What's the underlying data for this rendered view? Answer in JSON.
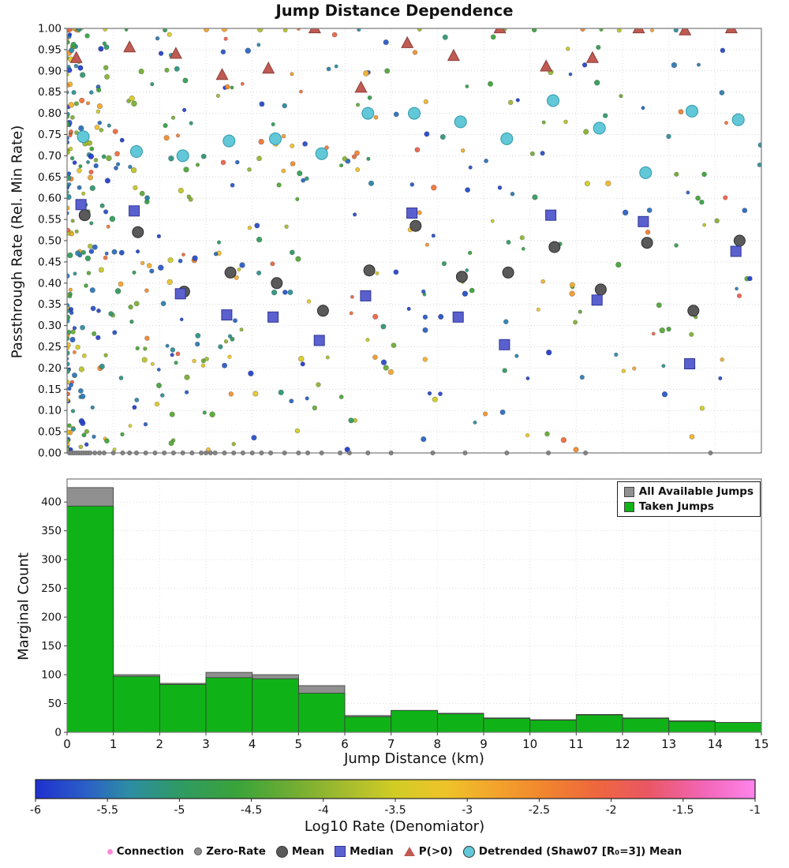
{
  "title": "Jump Distance Dependence",
  "chart_data": [
    {
      "type": "scatter",
      "title": "Jump Distance Dependence",
      "xlabel": "",
      "ylabel": "Passthrough Rate (Rel. Min Rate)",
      "xlim": [
        0,
        15
      ],
      "ylim": [
        0.0,
        1.0
      ],
      "grid": true,
      "yticks": [
        "0.00",
        "0.05",
        "0.10",
        "0.15",
        "0.20",
        "0.25",
        "0.30",
        "0.35",
        "0.40",
        "0.45",
        "0.50",
        "0.55",
        "0.60",
        "0.65",
        "0.70",
        "0.75",
        "0.80",
        "0.85",
        "0.90",
        "0.95",
        "1.00"
      ],
      "bin_centers": [
        0.35,
        1.5,
        2.5,
        3.5,
        4.5,
        5.5,
        6.5,
        7.5,
        8.5,
        9.5,
        10.5,
        11.5,
        12.5,
        13.5,
        14.5
      ],
      "summary_series": [
        {
          "name": "Mean",
          "marker": "circle",
          "color": "#5a5a5a",
          "edge": "#2e2e2e",
          "dx": 0.03,
          "values": [
            0.56,
            0.52,
            0.38,
            0.425,
            0.4,
            0.335,
            0.43,
            0.535,
            0.415,
            0.425,
            0.485,
            0.385,
            0.495,
            0.335,
            0.5
          ]
        },
        {
          "name": "Median",
          "marker": "square",
          "color": "#5b60cf",
          "edge": "#2f3696",
          "dx": -0.05,
          "values": [
            0.585,
            0.57,
            0.375,
            0.325,
            0.32,
            0.265,
            0.37,
            0.565,
            0.32,
            0.255,
            0.56,
            0.36,
            0.545,
            0.21,
            0.475
          ]
        },
        {
          "name": "P(>0)",
          "marker": "triangle",
          "color": "#c05a52",
          "edge": "#8c3f3a",
          "dx": -0.15,
          "values": [
            0.93,
            0.955,
            0.94,
            0.89,
            0.905,
            1.0,
            0.86,
            0.965,
            0.935,
            1.0,
            0.91,
            0.93,
            1.0,
            0.995,
            1.0
          ]
        },
        {
          "name": "Detrended (Shaw07 [R₀=3]) Mean",
          "marker": "circle",
          "color": "#62c8d8",
          "edge": "#2f98ab",
          "dx": 0.0,
          "values": [
            0.745,
            0.71,
            0.7,
            0.735,
            0.74,
            0.705,
            0.8,
            0.8,
            0.78,
            0.74,
            0.83,
            0.765,
            0.66,
            0.805,
            0.785
          ]
        }
      ],
      "zero_rate": {
        "name": "Zero-Rate",
        "color": "#8f8f8f",
        "edge": "#5f5f5f",
        "y": 0.0,
        "x": [
          0.05,
          0.1,
          0.15,
          0.2,
          0.25,
          0.3,
          0.35,
          0.4,
          0.45,
          0.5,
          0.6,
          0.7,
          0.8,
          1.0,
          1.2,
          1.35,
          1.5,
          1.7,
          1.9,
          2.1,
          2.3,
          2.5,
          2.7,
          2.9,
          3.0,
          3.1,
          3.2,
          3.4,
          3.6,
          3.8,
          4.0,
          4.2,
          4.4,
          4.7,
          5.0,
          5.2,
          5.5,
          5.9,
          6.1,
          6.5,
          7.0,
          7.9,
          8.6,
          9.5,
          10.4,
          11.2,
          13.9
        ]
      },
      "connections_cloud": {
        "name": "Connection",
        "count": 560,
        "seed": 20240917,
        "x_power": 2.8,
        "c_min": -5.9,
        "c_span": 4.0,
        "c_power": 1.4,
        "colored_by": "Log10 Rate (Denomiator)"
      }
    },
    {
      "type": "bar",
      "xlabel": "Jump Distance (km)",
      "ylabel": "Marginal Count",
      "xlim": [
        0,
        15
      ],
      "ylim": [
        0,
        440
      ],
      "xticks": [
        0,
        1,
        2,
        3,
        4,
        5,
        6,
        7,
        8,
        9,
        10,
        11,
        12,
        13,
        14,
        15
      ],
      "yticks": [
        0,
        50,
        100,
        150,
        200,
        250,
        300,
        350,
        400
      ],
      "bin_edges": [
        0,
        1,
        2,
        3,
        4,
        5,
        6,
        7,
        8,
        9,
        10,
        11,
        12,
        13,
        14,
        15
      ],
      "series": [
        {
          "name": "All Available Jumps",
          "color": "#909090",
          "values": [
            425,
            100,
            85,
            104,
            100,
            81,
            29,
            38,
            33,
            25,
            22,
            31,
            25,
            20,
            17
          ]
        },
        {
          "name": "Taken Jumps",
          "color": "#10b317",
          "values": [
            393,
            97,
            83,
            95,
            93,
            68,
            27,
            38,
            32,
            24,
            21,
            30,
            24,
            19,
            17
          ]
        }
      ],
      "legend_position": "top-right"
    },
    {
      "type": "colorbar",
      "label": "Log10 Rate (Denomiator)",
      "range": [
        -6,
        -1
      ],
      "ticks": [
        "-6",
        "-5.5",
        "-5",
        "-4.5",
        "-4",
        "-3.5",
        "-3",
        "-2.5",
        "-2",
        "-1.5",
        "-1"
      ],
      "stops": [
        {
          "t": 0.0,
          "c": "#1f30cf"
        },
        {
          "t": 0.07,
          "c": "#2b5fc6"
        },
        {
          "t": 0.13,
          "c": "#2d8da4"
        },
        {
          "t": 0.2,
          "c": "#2f9a63"
        },
        {
          "t": 0.28,
          "c": "#3aa33a"
        },
        {
          "t": 0.36,
          "c": "#72ad33"
        },
        {
          "t": 0.43,
          "c": "#a4bb2e"
        },
        {
          "t": 0.5,
          "c": "#d2cc25"
        },
        {
          "t": 0.57,
          "c": "#eec32a"
        },
        {
          "t": 0.64,
          "c": "#f3a32c"
        },
        {
          "t": 0.71,
          "c": "#f1842f"
        },
        {
          "t": 0.78,
          "c": "#ee673e"
        },
        {
          "t": 0.85,
          "c": "#e95763"
        },
        {
          "t": 0.93,
          "c": "#f266b7"
        },
        {
          "t": 1.0,
          "c": "#ff85ec"
        }
      ]
    }
  ],
  "bottom_legend": {
    "items": [
      {
        "label": "Connection",
        "marker": "dot-small",
        "color": "#ff8ad8"
      },
      {
        "label": "Zero-Rate",
        "marker": "dot-medium",
        "color": "#8f8f8f"
      },
      {
        "label": "Mean",
        "marker": "circle",
        "color": "#5a5a5a"
      },
      {
        "label": "Median",
        "marker": "square",
        "color": "#5b60cf"
      },
      {
        "label": "P(>0)",
        "marker": "triangle",
        "color": "#c05a52"
      },
      {
        "label": "Detrended (Shaw07 [R₀=3]) Mean",
        "marker": "circle",
        "color": "#62c8d8"
      }
    ]
  }
}
